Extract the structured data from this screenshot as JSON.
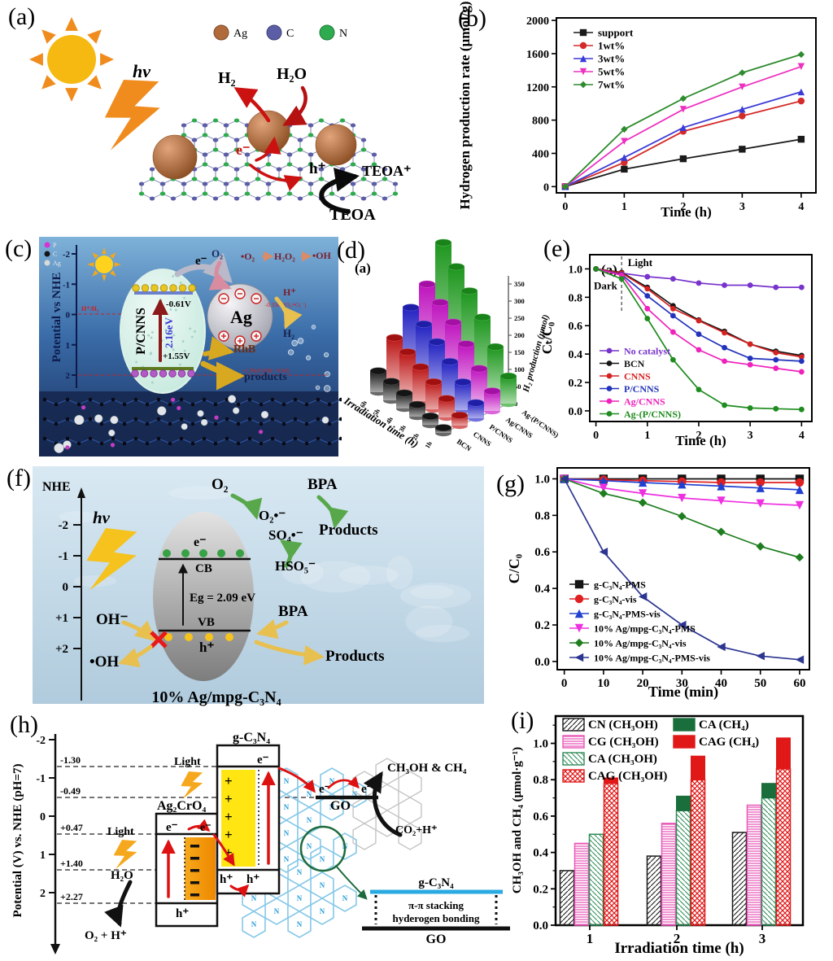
{
  "figure": {
    "labels": {
      "a": "(a)",
      "b": "(b)",
      "c": "(c)",
      "d": "(d)",
      "e": "(e)",
      "f": "(f)",
      "g": "(g)",
      "h": "(h)",
      "i": "(i)"
    },
    "a": {
      "legend": [
        {
          "label": "Ag",
          "color": "#b06a3b"
        },
        {
          "label": "C",
          "color": "#5b5ea6"
        },
        {
          "label": "N",
          "color": "#2eab4f"
        }
      ],
      "hv": "hv",
      "h2": "H₂",
      "h2o": "H₂O",
      "electron": "e⁻",
      "hole": "h⁺",
      "teoa_plus": "TEOA⁺",
      "teoa": "TEOA"
    },
    "c": {
      "axis": "Potential vs NHE",
      "ticks": [
        "-2",
        "-1",
        "0",
        "1",
        "2"
      ],
      "legend": [
        {
          "label": "P",
          "color": "#d633d6"
        },
        {
          "label": "C",
          "color": "#151515"
        },
        {
          "label": "Ag",
          "color": "#d9d9d9"
        }
      ],
      "electron": "e⁻",
      "o2": "O₂",
      "o2r": "•O₂",
      "h2o2": "H₂O₂",
      "ohr": "•OH",
      "hplus": "H⁺",
      "pot1": "-0.33eV(O₂/•O₂⁻)",
      "h2": "H₂",
      "hh2": "H⁺/H₂",
      "cb": "-0.61V",
      "gap": "2.16eV",
      "vb": "+1.55V",
      "mat": "P/CNNS",
      "ag": "Ag",
      "rhb": "RhB",
      "products": "products",
      "pot2": "+1.99eV(OH⁻/•OH)"
    },
    "f": {
      "axis": "NHE",
      "ticks": [
        "-2",
        "-1",
        "0",
        "+1",
        "+2"
      ],
      "hv": "hv",
      "o2": "O₂",
      "o2r": "O₂•⁻",
      "so4": "SO₄•⁻",
      "hso5": "HSO₅⁻",
      "bpa1": "BPA",
      "prod1": "Products",
      "e": "e⁻",
      "cb": "CB",
      "gap": "Eg = 2.09 eV",
      "vb": "VB",
      "h": "h⁺",
      "ohm": "OH⁻",
      "ohr": "•OH",
      "bpa2": "BPA",
      "prod2": "Products",
      "caption": "10% Ag/mpg-C₃N₄"
    },
    "h": {
      "axis": "Potential (V) vs. NHE (pH=7)",
      "ticks": [
        "-2",
        "-1",
        "0",
        "1",
        "2"
      ],
      "levels": [
        "-1.30",
        "-0.49",
        "+0.47",
        "+1.40",
        "+2.27"
      ],
      "light": "Light",
      "ag2cro4": "Ag₂CrO₄",
      "gc3n4": "g-C₃N₄",
      "e": "e⁻",
      "h": "h⁺",
      "go": "GO",
      "h2o": "H₂O",
      "o2h": "O₂ + H⁺",
      "ch3oh": "CH₃OH & CH₄",
      "co2": "CO₂+H⁺",
      "inset_top": "g-C₃N₄",
      "stack1": "π-π stacking",
      "stack2": "hyderogen bonding",
      "inset_go": "GO"
    }
  },
  "chart_data": [
    {
      "id": "b",
      "type": "line",
      "title": "",
      "xlabel": "Time (h)",
      "ylabel": "Hydrogen production rate (μmol/g)",
      "x": [
        0,
        1,
        2,
        3,
        4
      ],
      "xticks": [
        0,
        1,
        2,
        3,
        4
      ],
      "yticks": [
        0,
        400,
        800,
        1200,
        1600,
        2000
      ],
      "xlim": [
        -0.15,
        4.25
      ],
      "ylim": [
        -75,
        2030
      ],
      "grid": false,
      "legend_position": "top-left",
      "series": [
        {
          "name": "support",
          "color": "#1a1a1a",
          "marker": "square",
          "values": [
            0,
            210,
            335,
            450,
            570
          ]
        },
        {
          "name": "1wt%",
          "color": "#d42a2a",
          "marker": "circle",
          "values": [
            0,
            290,
            665,
            850,
            1030
          ]
        },
        {
          "name": "3wt%",
          "color": "#3b3bd6",
          "marker": "triangle",
          "values": [
            0,
            350,
            710,
            930,
            1140
          ]
        },
        {
          "name": "5wt%",
          "color": "#ee30c0",
          "marker": "triangle-down",
          "values": [
            0,
            545,
            930,
            1200,
            1445
          ]
        },
        {
          "name": "7wt%",
          "color": "#2e8b2e",
          "marker": "diamond",
          "values": [
            0,
            690,
            1060,
            1370,
            1590
          ]
        }
      ]
    },
    {
      "id": "d",
      "type": "bar3d",
      "inner_label": "(a)",
      "xlabel": "Irradiation time (h)",
      "zlabel": "H₂ production (μmol)",
      "time_ticks": [
        "1h",
        "2h",
        "3h",
        "4h",
        "5h",
        "6h"
      ],
      "zticks": [
        0,
        50,
        100,
        150,
        200,
        250,
        300,
        350
      ],
      "zlim": [
        0,
        350
      ],
      "series": [
        {
          "name": "BCN",
          "color": "#181818",
          "values": [
            15,
            25,
            35,
            45,
            55,
            62
          ]
        },
        {
          "name": "CNNS",
          "color": "#c41414",
          "values": [
            30,
            55,
            80,
            100,
            120,
            138
          ]
        },
        {
          "name": "P/CNNS",
          "color": "#2424cc",
          "values": [
            45,
            82,
            118,
            152,
            180,
            205
          ]
        },
        {
          "name": "Ag/CNNS",
          "color": "#c814c8",
          "values": [
            58,
            100,
            148,
            188,
            222,
            252
          ]
        },
        {
          "name": "Ag-(P/CNNS)",
          "color": "#1e9e1e",
          "values": [
            80,
            142,
            205,
            258,
            305,
            352
          ]
        }
      ]
    },
    {
      "id": "e",
      "type": "line",
      "inner_label": "(a)",
      "xlabel": "Time (h)",
      "ylabel": "Cₜ/C₀",
      "x": [
        0,
        0.5,
        1,
        1.5,
        2,
        2.5,
        3,
        3.5,
        4
      ],
      "xticks": [
        0,
        1,
        2,
        3,
        4
      ],
      "yticks": [
        0.0,
        0.2,
        0.4,
        0.6,
        0.8,
        1.0
      ],
      "xlim": [
        -0.12,
        4.2
      ],
      "ylim": [
        -0.075,
        1.1
      ],
      "legend_position": "bottom-left",
      "annotations": {
        "light": "Light",
        "dark": "Dark",
        "divider_x": 0.5
      },
      "series": [
        {
          "name": "No catalyst",
          "color": "#7733cc",
          "marker": "circle",
          "values": [
            1.0,
            0.97,
            0.945,
            0.93,
            0.9,
            0.885,
            0.885,
            0.87,
            0.87
          ]
        },
        {
          "name": "BCN",
          "color": "#151515",
          "marker": "circle",
          "values": [
            1.0,
            0.975,
            0.87,
            0.74,
            0.64,
            0.56,
            0.47,
            0.42,
            0.39
          ]
        },
        {
          "name": "CNNS",
          "color": "#d42222",
          "marker": "circle",
          "values": [
            1.0,
            0.97,
            0.86,
            0.72,
            0.635,
            0.55,
            0.47,
            0.41,
            0.38
          ]
        },
        {
          "name": "P/CNNS",
          "color": "#2233bb",
          "marker": "circle",
          "values": [
            1.0,
            0.96,
            0.81,
            0.67,
            0.54,
            0.445,
            0.37,
            0.36,
            0.35
          ]
        },
        {
          "name": "Ag/CNNS",
          "color": "#ee22bb",
          "marker": "circle",
          "values": [
            1.0,
            0.955,
            0.72,
            0.555,
            0.43,
            0.35,
            0.325,
            0.3,
            0.275
          ]
        },
        {
          "name": "Ag-(P/CNNS)",
          "color": "#1f8c1f",
          "marker": "circle",
          "values": [
            1.0,
            0.93,
            0.65,
            0.36,
            0.15,
            0.04,
            0.02,
            0.015,
            0.01
          ]
        }
      ]
    },
    {
      "id": "g",
      "type": "line",
      "xlabel": "Time (min)",
      "ylabel": "C/C₀",
      "x": [
        0,
        10,
        20,
        30,
        40,
        50,
        60
      ],
      "xticks": [
        0,
        10,
        20,
        30,
        40,
        50,
        60
      ],
      "yticks": [
        0.0,
        0.2,
        0.4,
        0.6,
        0.8,
        1.0
      ],
      "xlim": [
        -1.8,
        62.5
      ],
      "ylim": [
        -0.045,
        1.06
      ],
      "legend_position": "bottom-left",
      "series": [
        {
          "name": "g-C₃N₄-PMS",
          "color": "#151515",
          "marker": "square",
          "values": [
            1.0,
            1.0,
            1.0,
            1.0,
            1.0,
            1.0,
            1.0
          ]
        },
        {
          "name": "g-C₃N₄-vis",
          "color": "#e02020",
          "marker": "circle",
          "values": [
            1.0,
            0.995,
            0.99,
            0.985,
            0.98,
            0.98,
            0.98
          ]
        },
        {
          "name": "g-C₃N₄-PMS-vis",
          "color": "#2040d0",
          "marker": "triangle",
          "values": [
            1.0,
            0.99,
            0.98,
            0.97,
            0.96,
            0.95,
            0.94
          ]
        },
        {
          "name": "10% Ag/mpg-C₃N₄-PMS",
          "color": "#ee30e0",
          "marker": "triangle-down",
          "values": [
            1.0,
            0.95,
            0.92,
            0.895,
            0.88,
            0.865,
            0.855
          ]
        },
        {
          "name": "10% Ag/mpg-C₃N₄-vis",
          "color": "#1e7d1e",
          "marker": "diamond",
          "values": [
            1.0,
            0.92,
            0.87,
            0.795,
            0.71,
            0.63,
            0.57
          ]
        },
        {
          "name": "10% Ag/mpg-C₃N₄-PMS-vis",
          "color": "#2c3590",
          "marker": "triangle-left",
          "values": [
            1.0,
            0.6,
            0.355,
            0.2,
            0.08,
            0.03,
            0.01
          ]
        }
      ]
    },
    {
      "id": "i",
      "type": "bar",
      "xlabel": "Irradiation time (h)",
      "ylabel": "CH₃OH and CH₄ (μmol·g⁻¹)",
      "categories": [
        "1",
        "2",
        "3"
      ],
      "yticks": [
        0.0,
        0.2,
        0.4,
        0.6,
        0.8,
        1.0
      ],
      "ylim": [
        0,
        1.15
      ],
      "series": [
        {
          "name": "CN (CH₃OH)",
          "style": "hatch-diag",
          "color": "#181818",
          "values": [
            0.3,
            0.38,
            0.51
          ]
        },
        {
          "name": "CG (CH₃OH)",
          "style": "hatch-horiz",
          "color": "#e858b8",
          "values": [
            0.45,
            0.56,
            0.66
          ]
        },
        {
          "name": "CA (CH₃OH)",
          "style": "hatch-back",
          "color": "#2e8b57",
          "values": [
            0.5,
            0.63,
            0.7
          ]
        },
        {
          "name": "CAG (CH₃OH)",
          "style": "hatch-cross",
          "color": "#e01818",
          "values": [
            0.78,
            0.8,
            0.86
          ]
        },
        {
          "name": "CA (CH₄)",
          "style": "solid",
          "color": "#1a6e3c",
          "stack_on_index": 2,
          "values": [
            0,
            0.08,
            0.08
          ]
        },
        {
          "name": "CAG (CH₄)",
          "style": "solid",
          "color": "#e01818",
          "stack_on_index": 3,
          "values": [
            0.03,
            0.13,
            0.17
          ]
        }
      ]
    }
  ]
}
